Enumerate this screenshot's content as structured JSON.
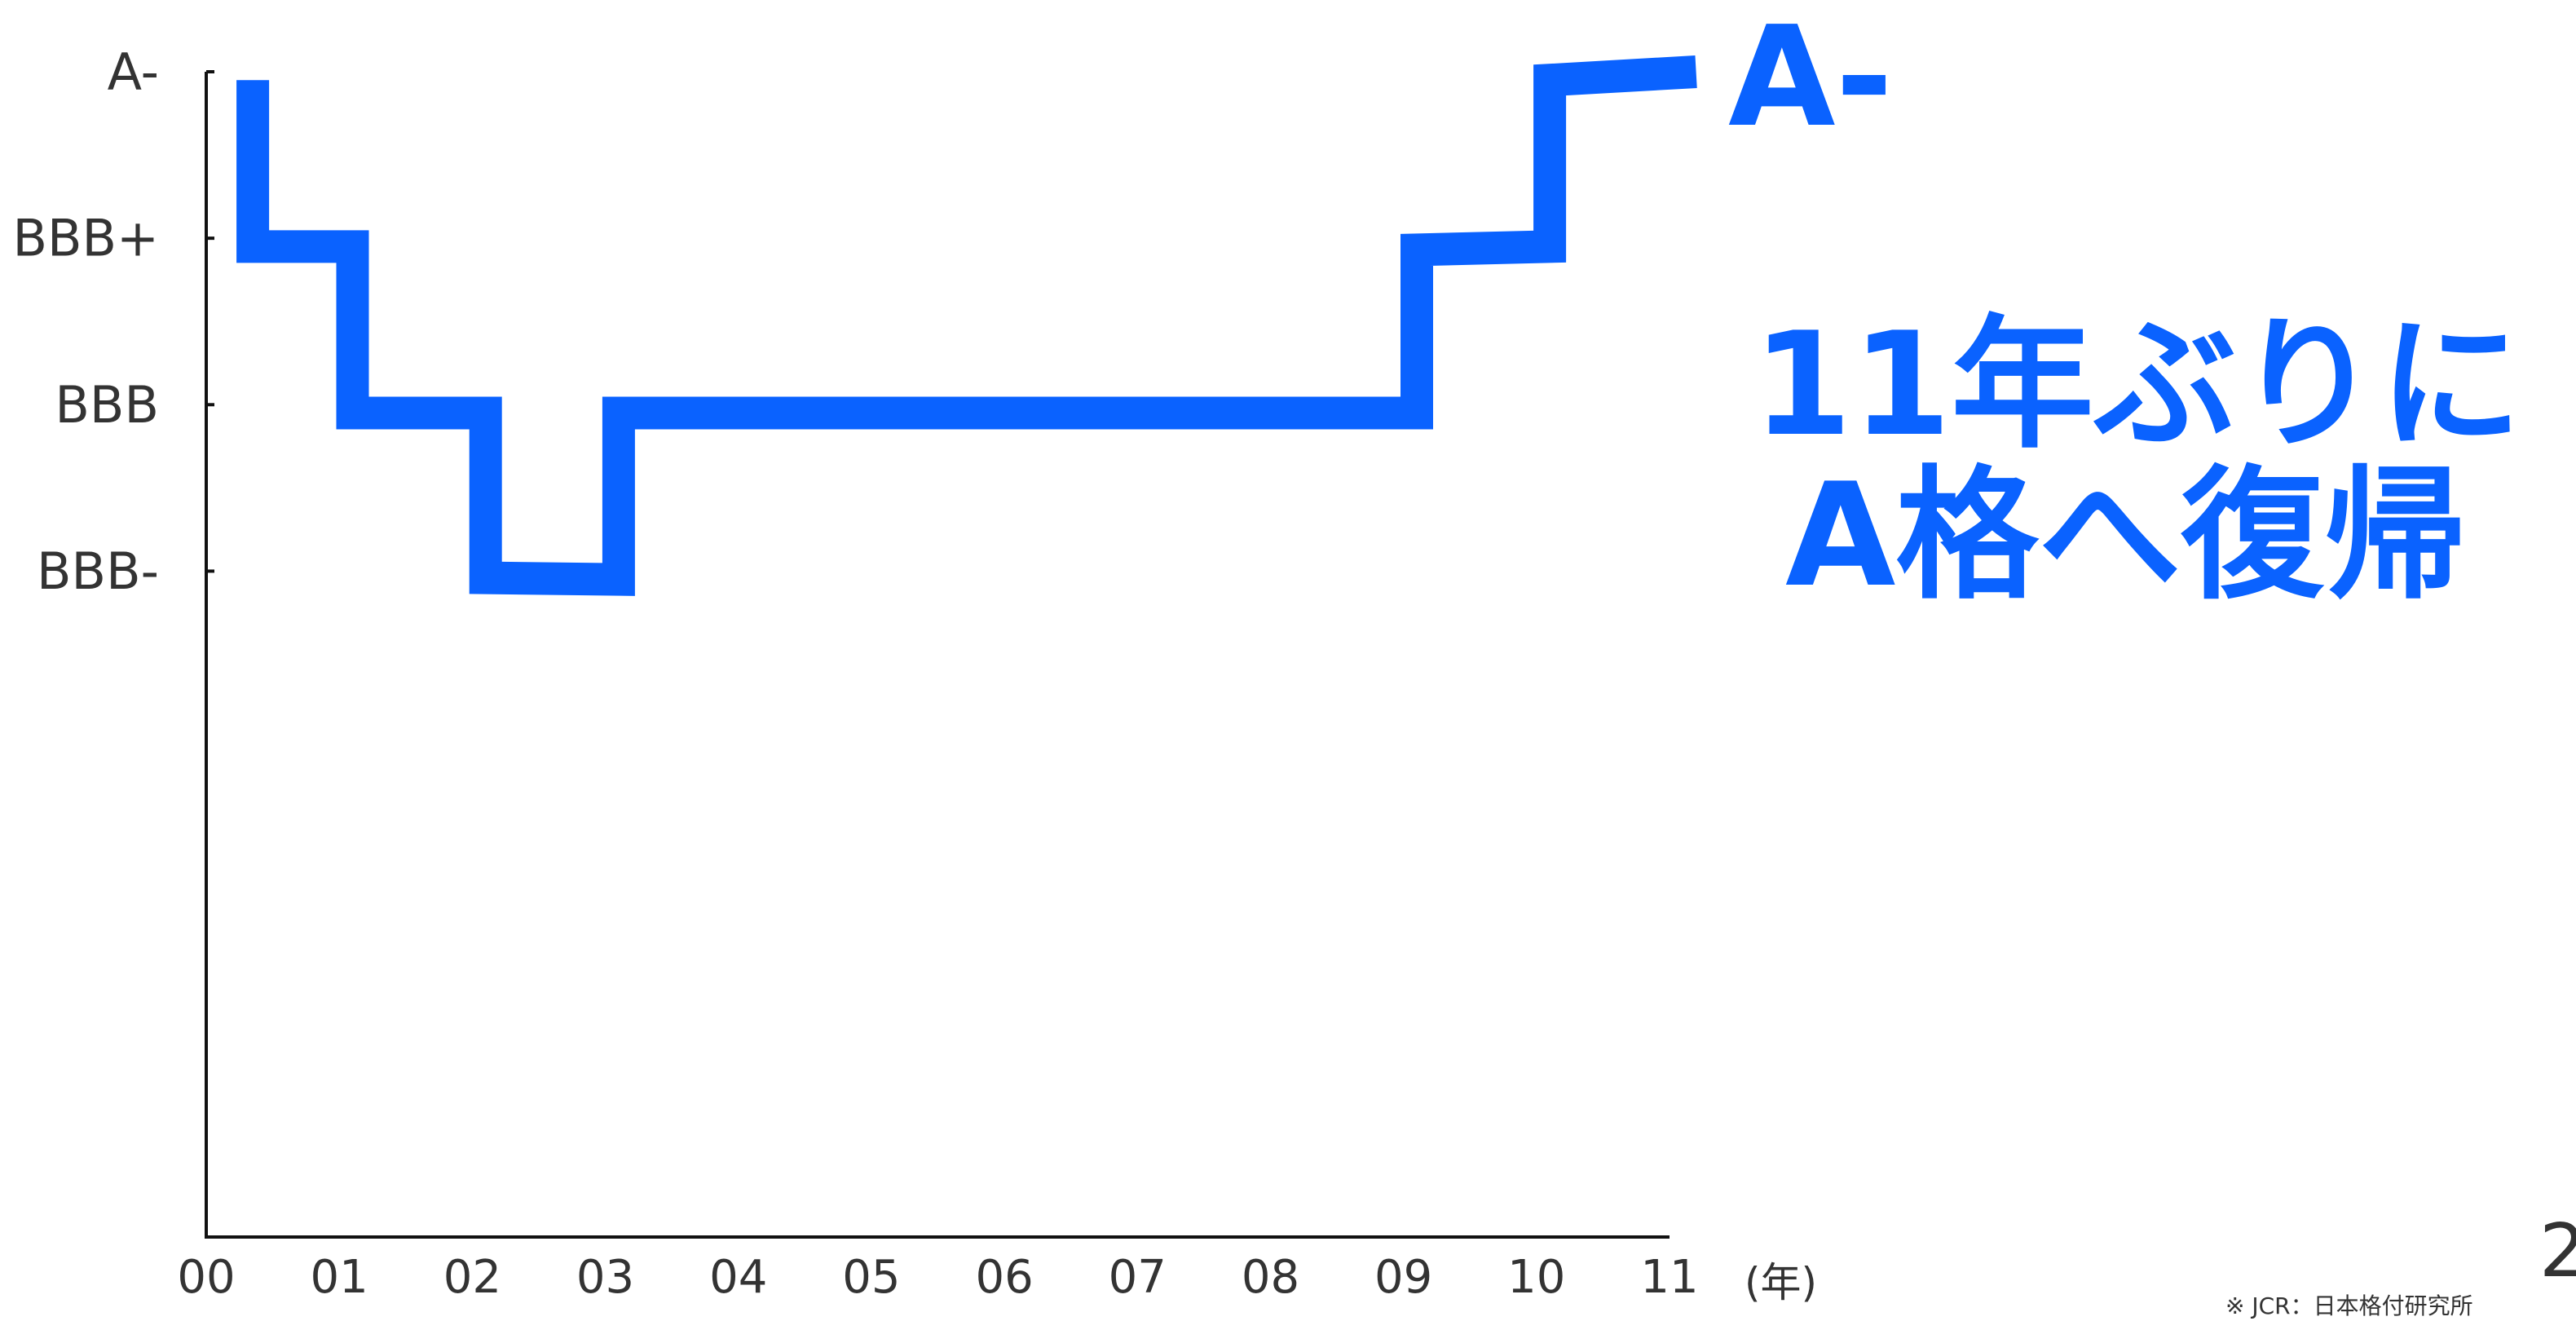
{
  "chart_data": {
    "type": "line",
    "step": true,
    "title": "",
    "xlabel": "(年)",
    "ylabel": "",
    "x_ticks": [
      "00",
      "01",
      "02",
      "03",
      "04",
      "05",
      "06",
      "07",
      "08",
      "09",
      "10",
      "11"
    ],
    "y_ticks": [
      "A-",
      "BBB+",
      "BBB",
      "BBB-"
    ],
    "y_tick_values": [
      4,
      3,
      2,
      1
    ],
    "xlim": [
      0,
      11
    ],
    "ylim": [
      -3,
      4
    ],
    "grid": false,
    "series": [
      {
        "color": "#0a62ff",
        "points": [
          [
            0.35,
            3.95
          ],
          [
            0.35,
            2.95
          ],
          [
            1.1,
            2.95
          ],
          [
            1.1,
            1.95
          ],
          [
            2.1,
            1.95
          ],
          [
            2.1,
            0.96
          ],
          [
            3.1,
            0.95
          ],
          [
            3.1,
            1.95
          ],
          [
            9.1,
            1.95
          ],
          [
            9.1,
            2.93
          ],
          [
            10.1,
            2.95
          ],
          [
            10.1,
            3.95
          ],
          [
            11.2,
            4.0
          ]
        ]
      }
    ]
  },
  "annotations": {
    "callout_value": "A-",
    "headline_line_1": "11年ぶりに",
    "headline_line_2": "A格へ復帰",
    "source_note": "※ JCR：日本格付研究所",
    "page_number": "2"
  },
  "colors": {
    "series": "#0a62ff",
    "text": "#333333",
    "axis": "#111111"
  }
}
